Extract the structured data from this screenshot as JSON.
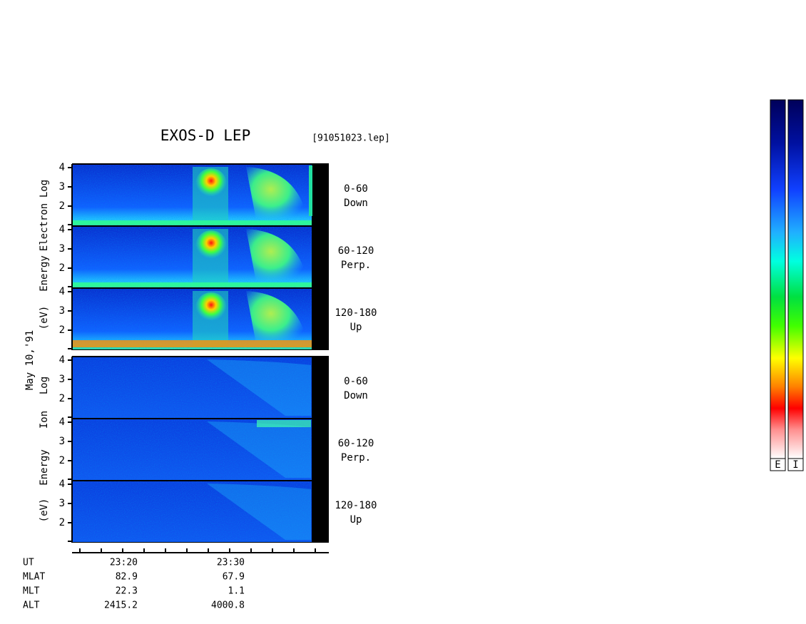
{
  "title": "EXOS-D LEP",
  "file": "[91051023.lep]",
  "date_label": "May 10,'91",
  "groups": [
    {
      "axis_label": [
        "Log",
        "Electron",
        "Energy",
        "(eV)"
      ],
      "panels": [
        {
          "yticks": [
            2,
            3,
            4
          ],
          "label": [
            "0-60",
            "Down"
          ]
        },
        {
          "yticks": [
            2,
            3,
            4
          ],
          "label": [
            "60-120",
            "Perp."
          ]
        },
        {
          "yticks": [
            2,
            3,
            4
          ],
          "label": [
            "120-180",
            "Up"
          ]
        }
      ]
    },
    {
      "axis_label": [
        "Log",
        "Ion",
        "Energy",
        "(eV)"
      ],
      "panels": [
        {
          "yticks": [
            2,
            3,
            4
          ],
          "label": [
            "0-60",
            "Down"
          ]
        },
        {
          "yticks": [
            2,
            3,
            4
          ],
          "label": [
            "60-120",
            "Perp."
          ]
        },
        {
          "yticks": [
            2,
            3,
            4
          ],
          "label": [
            "120-180",
            "Up"
          ]
        }
      ]
    }
  ],
  "ephemeris": {
    "rows": [
      [
        "UT",
        "23:20",
        "23:30"
      ],
      [
        "MLAT",
        "82.9",
        "67.9"
      ],
      [
        "MLT",
        "22.3",
        "1.1"
      ],
      [
        "ALT",
        "2415.2",
        "4000.8"
      ]
    ]
  },
  "colorbars": [
    "E",
    "I"
  ]
}
